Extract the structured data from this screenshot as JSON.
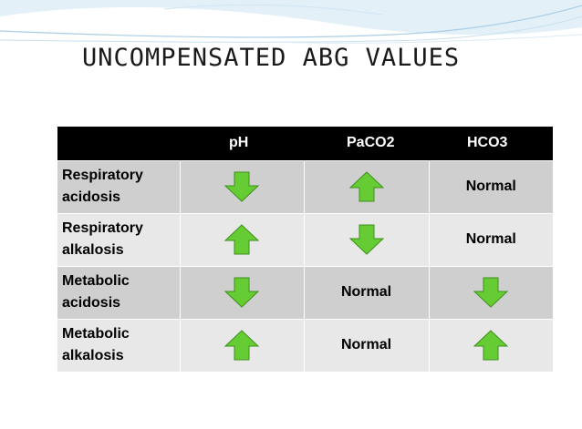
{
  "slide": {
    "title": "UNCOMPENSATED ABG VALUES"
  },
  "table": {
    "headers": [
      "",
      "pH",
      "PaCO2",
      "HCO3"
    ],
    "rows": [
      {
        "label_line1": "Respiratory",
        "label_line2": "acidosis",
        "ph": "down-arrow-icon",
        "paco2": "up-arrow-icon",
        "hco3": "Normal"
      },
      {
        "label_line1": "Respiratory",
        "label_line2": "alkalosis",
        "ph": "up-arrow-icon",
        "paco2": "down-arrow-icon",
        "hco3": "Normal"
      },
      {
        "label_line1": "Metabolic",
        "label_line2": "acidosis",
        "ph": "down-arrow-icon",
        "paco2": "Normal",
        "hco3": "down-arrow-icon"
      },
      {
        "label_line1": "Metabolic",
        "label_line2": "alkalosis",
        "ph": "up-arrow-icon",
        "paco2": "Normal",
        "hco3": "up-arrow-icon"
      }
    ]
  },
  "colors": {
    "arrow_fill": "#66cc33",
    "arrow_stroke": "#3f8f1c",
    "header_bg": "#000000",
    "row_shade": "#cfcfcf",
    "row_light": "#e8e8e8",
    "accent_deco": "#5b9bd5"
  }
}
